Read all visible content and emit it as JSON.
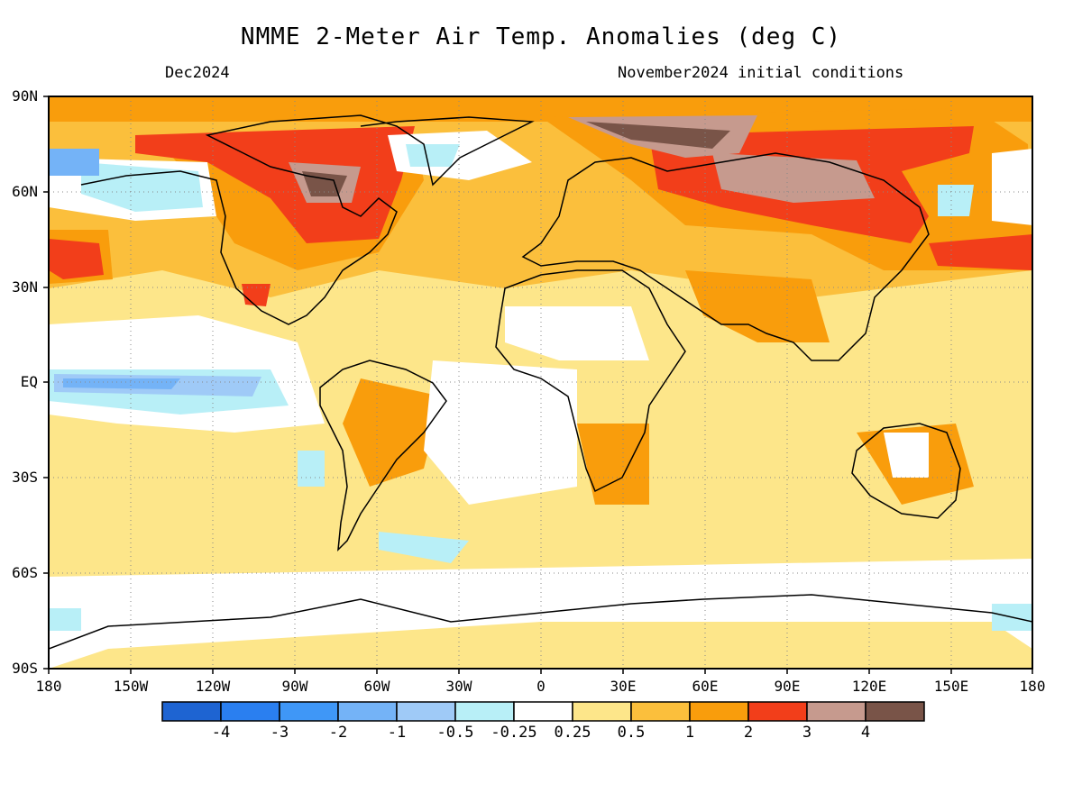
{
  "header": {
    "title": "NMME 2-Meter Air Temp. Anomalies (deg C)",
    "valid_month": "Dec2024",
    "initial_conditions": "November2024 initial conditions"
  },
  "axes": {
    "lat_labels": [
      "90N",
      "60N",
      "30N",
      "EQ",
      "30S",
      "60S",
      "90S"
    ],
    "lon_labels": [
      "180",
      "150W",
      "120W",
      "90W",
      "60W",
      "30W",
      "0",
      "30E",
      "60E",
      "90E",
      "120E",
      "150E",
      "180"
    ]
  },
  "colorbar": {
    "colors": [
      "#1e64d2",
      "#2a7ff0",
      "#3f97f7",
      "#74b3f7",
      "#9fcaf7",
      "#b8eff7",
      "#ffffff",
      "#fde68a",
      "#fbbf3c",
      "#f99d0c",
      "#f23e1a",
      "#c69a8e",
      "#795448"
    ],
    "labels": [
      "-4",
      "-3",
      "-2",
      "-1",
      "-0.5",
      "-0.25",
      "0.25",
      "0.5",
      "1",
      "2",
      "3",
      "4"
    ]
  },
  "map_colors": {
    "ocean_base": "#fde68a",
    "land_stroke": "#000000"
  }
}
